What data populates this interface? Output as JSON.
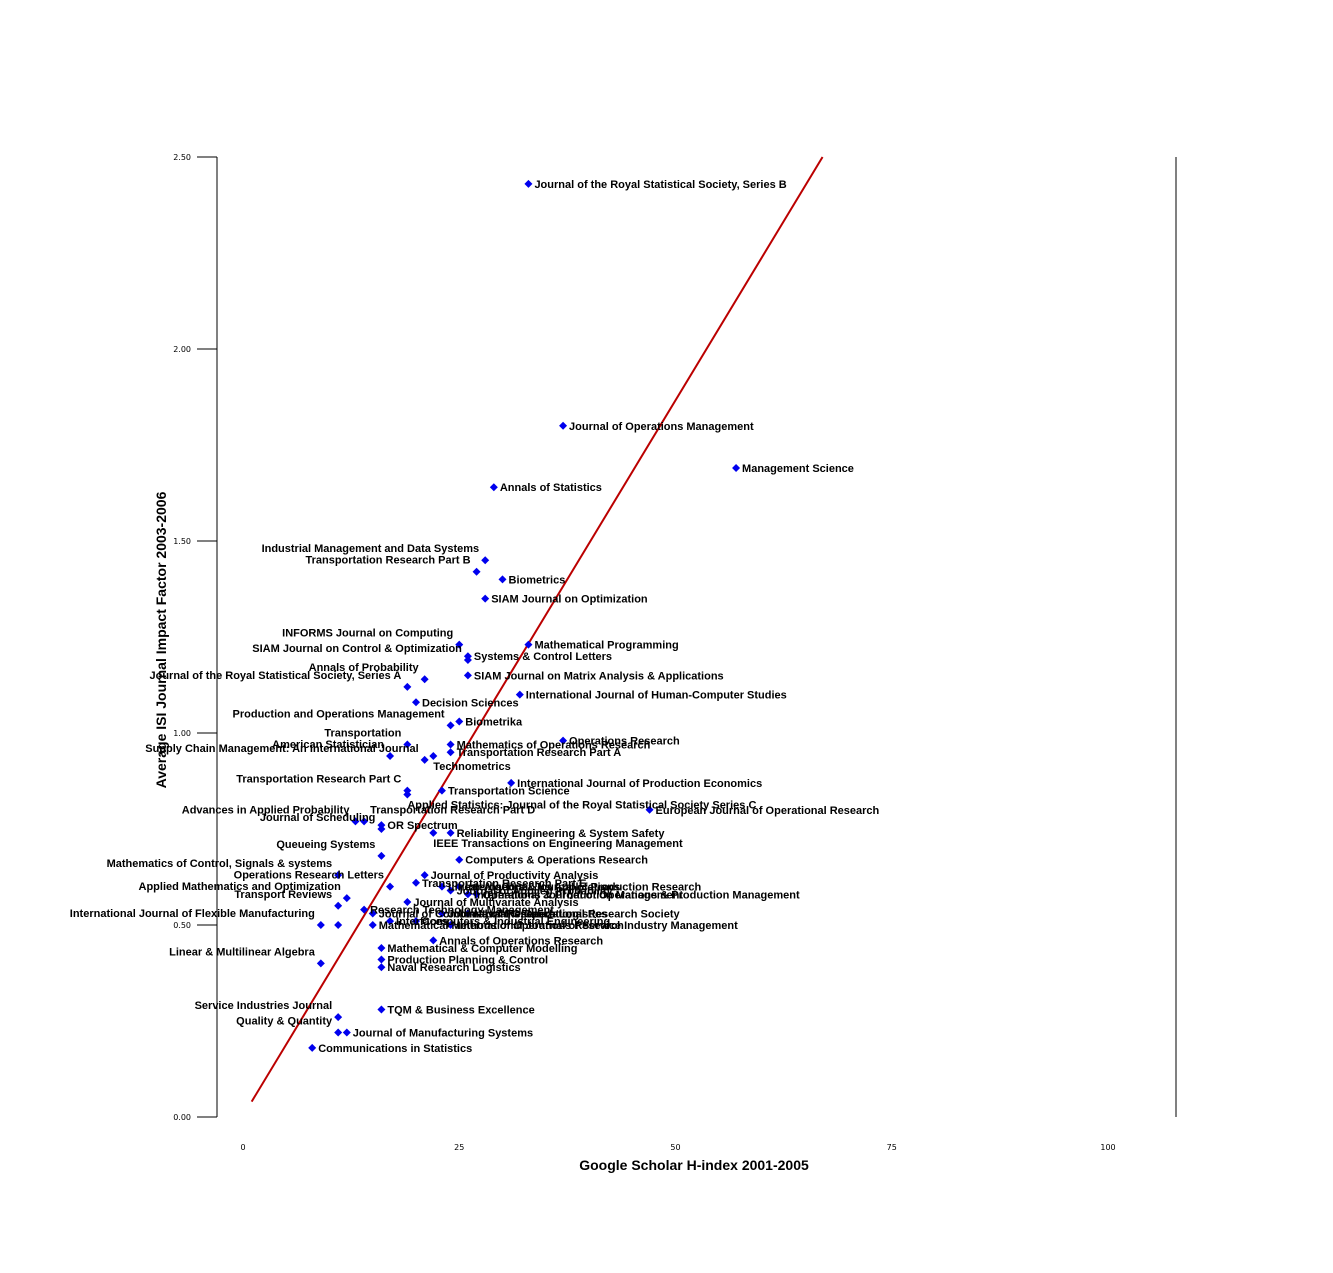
{
  "chart_data": {
    "type": "scatter",
    "title": "",
    "xlabel": "Google Scholar H-index 2001-2005",
    "ylabel": "Average ISI Journal Impact Factor 2003-2006",
    "xlim": [
      0,
      108
    ],
    "ylim": [
      0,
      2.5
    ],
    "x_ticks": [
      "0",
      "25",
      "50",
      "75",
      "100"
    ],
    "x_tick_values": [
      0,
      25,
      50,
      75,
      100
    ],
    "y_ticks": [
      "0.00",
      "0.50",
      "1.00",
      "1.50",
      "2.00",
      "2.50"
    ],
    "y_tick_values": [
      0,
      0.5,
      1.0,
      1.5,
      2.0,
      2.5
    ],
    "grid": false,
    "marker_color": "#0000ee",
    "trend_color": "#bb0000",
    "trend_line": {
      "x": [
        1,
        67
      ],
      "y": [
        0.04,
        2.5
      ]
    },
    "points": [
      {
        "label": "Journal of the Royal Statistical Society, Series B",
        "x": 33,
        "y": 2.43,
        "pos": "right"
      },
      {
        "label": "Journal of Operations Management",
        "x": 37,
        "y": 1.8,
        "pos": "right"
      },
      {
        "label": "Management Science",
        "x": 57,
        "y": 1.69,
        "pos": "right"
      },
      {
        "label": "Annals of Statistics",
        "x": 29,
        "y": 1.64,
        "pos": "right"
      },
      {
        "label": "Industrial Management and Data Systems",
        "x": 28,
        "y": 1.45,
        "pos": "left"
      },
      {
        "label": "Transportation Research Part B",
        "x": 27,
        "y": 1.42,
        "pos": "left"
      },
      {
        "label": "Biometrics",
        "x": 30,
        "y": 1.4,
        "pos": "right"
      },
      {
        "label": "SIAM Journal on Optimization",
        "x": 28,
        "y": 1.35,
        "pos": "right"
      },
      {
        "label": "INFORMS Journal on Computing",
        "x": 25,
        "y": 1.23,
        "pos": "left"
      },
      {
        "label": "Mathematical Programming",
        "x": 33,
        "y": 1.23,
        "pos": "right"
      },
      {
        "label": "SIAM Journal on Control & Optimization",
        "x": 26,
        "y": 1.19,
        "pos": "left"
      },
      {
        "label": "Systems & Control Letters",
        "x": 26,
        "y": 1.2,
        "pos": "right"
      },
      {
        "label": "Annals of Probability",
        "x": 21,
        "y": 1.14,
        "pos": "left"
      },
      {
        "label": "SIAM Journal on Matrix Analysis & Applications",
        "x": 26,
        "y": 1.15,
        "pos": "right"
      },
      {
        "label": "Journal of the Royal Statistical Society, Series A",
        "x": 19,
        "y": 1.12,
        "pos": "left"
      },
      {
        "label": "International Journal of Human-Computer Studies",
        "x": 32,
        "y": 1.1,
        "pos": "right"
      },
      {
        "label": "Decision Sciences",
        "x": 20,
        "y": 1.08,
        "pos": "right"
      },
      {
        "label": "Biometrika",
        "x": 25,
        "y": 1.03,
        "pos": "right"
      },
      {
        "label": "Production and Operations Management",
        "x": 24,
        "y": 1.02,
        "pos": "left"
      },
      {
        "label": "Operations Research",
        "x": 37,
        "y": 0.98,
        "pos": "right"
      },
      {
        "label": "Transportation",
        "x": 19,
        "y": 0.97,
        "pos": "left"
      },
      {
        "label": "Mathematics of Operations Research",
        "x": 24,
        "y": 0.97,
        "pos": "right"
      },
      {
        "label": "American Statistician",
        "x": 17,
        "y": 0.94,
        "pos": "left"
      },
      {
        "label": "Transportation Research Part A",
        "x": 24,
        "y": 0.95,
        "pos": "right"
      },
      {
        "label": "Supply Chain Management: An International Journal",
        "x": 21,
        "y": 0.93,
        "pos": "left"
      },
      {
        "label": "Technometrics",
        "x": 22,
        "y": 0.94,
        "pos": "below"
      },
      {
        "label": "International Journal of Production Economics",
        "x": 31,
        "y": 0.87,
        "pos": "right"
      },
      {
        "label": "Transportation Research Part C",
        "x": 19,
        "y": 0.85,
        "pos": "left"
      },
      {
        "label": "Transportation Science",
        "x": 23,
        "y": 0.85,
        "pos": "right"
      },
      {
        "label": "Applied Statistics: Journal of the Royal Statistical Society Series C",
        "x": 19,
        "y": 0.84,
        "pos": "below"
      },
      {
        "label": "European Journal of Operational Research",
        "x": 47,
        "y": 0.8,
        "pos": "right"
      },
      {
        "label": "Advances in Applied Probability",
        "x": 13,
        "y": 0.77,
        "pos": "left"
      },
      {
        "label": "Transportation Research Part D",
        "x": 14,
        "y": 0.77,
        "pos": "above"
      },
      {
        "label": "OR Spectrum",
        "x": 16,
        "y": 0.76,
        "pos": "right"
      },
      {
        "label": "Journal of Scheduling",
        "x": 16,
        "y": 0.75,
        "pos": "left"
      },
      {
        "label": "Reliability Engineering & System Safety",
        "x": 24,
        "y": 0.74,
        "pos": "right"
      },
      {
        "label": "IEEE Transactions on Engineering Management",
        "x": 22,
        "y": 0.74,
        "pos": "below"
      },
      {
        "label": "Queueing Systems",
        "x": 16,
        "y": 0.68,
        "pos": "left"
      },
      {
        "label": "Computers & Operations Research",
        "x": 25,
        "y": 0.67,
        "pos": "right"
      },
      {
        "label": "Mathematics of Control, Signals & systems",
        "x": 11,
        "y": 0.63,
        "pos": "left"
      },
      {
        "label": "Journal of Productivity Analysis",
        "x": 21,
        "y": 0.63,
        "pos": "right"
      },
      {
        "label": "Transportation Research Part E",
        "x": 20,
        "y": 0.61,
        "pos": "right"
      },
      {
        "label": "Operations Research Letters",
        "x": 17,
        "y": 0.6,
        "pos": "left"
      },
      {
        "label": "Journal of Applied Probability",
        "x": 24,
        "y": 0.59,
        "pos": "right"
      },
      {
        "label": "International Journal of Production Research",
        "x": 25,
        "y": 0.6,
        "pos": "right"
      },
      {
        "label": "Linear Algebra & Its Applications",
        "x": 23,
        "y": 0.6,
        "pos": "right"
      },
      {
        "label": "Operations & Production Management",
        "x": 27,
        "y": 0.58,
        "pos": "right"
      },
      {
        "label": "International Journal of Operations & Production Management",
        "x": 26,
        "y": 0.58,
        "pos": "right"
      },
      {
        "label": "Applied Mathematics and Optimization",
        "x": 12,
        "y": 0.57,
        "pos": "left"
      },
      {
        "label": "Journal of Multivariate Analysis",
        "x": 19,
        "y": 0.56,
        "pos": "right"
      },
      {
        "label": "Transport Reviews",
        "x": 11,
        "y": 0.55,
        "pos": "left"
      },
      {
        "label": "Research Technology Management",
        "x": 14,
        "y": 0.54,
        "pos": "right"
      },
      {
        "label": "Journal of Combinatorial Optimization",
        "x": 15,
        "y": 0.53,
        "pos": "right"
      },
      {
        "label": "Journal of the Operational Research Society",
        "x": 23,
        "y": 0.53,
        "pos": "right"
      },
      {
        "label": "Naval Research Logistics",
        "x": 26,
        "y": 0.53,
        "pos": "right"
      },
      {
        "label": "Interfaces",
        "x": 17,
        "y": 0.51,
        "pos": "right"
      },
      {
        "label": "Computers & Industrial Engineering",
        "x": 20,
        "y": 0.51,
        "pos": "right"
      },
      {
        "label": "International Journal of Flexible Manufacturing",
        "x": 9,
        "y": 0.5,
        "pos": "left"
      },
      {
        "label": "International Journal of Flexible Manufacturing",
        "x": 11,
        "y": 0.5,
        "pos": "none"
      },
      {
        "label": "Mathematical Methods of Operations Research",
        "x": 15,
        "y": 0.5,
        "pos": "right"
      },
      {
        "label": "International Journal of Service Industry Management",
        "x": 24,
        "y": 0.5,
        "pos": "right"
      },
      {
        "label": "Annals of Operations Research",
        "x": 22,
        "y": 0.46,
        "pos": "right"
      },
      {
        "label": "Mathematical & Computer Modelling",
        "x": 16,
        "y": 0.44,
        "pos": "right"
      },
      {
        "label": "Linear & Multilinear Algebra",
        "x": 9,
        "y": 0.4,
        "pos": "left"
      },
      {
        "label": "Production Planning & Control",
        "x": 16,
        "y": 0.41,
        "pos": "right"
      },
      {
        "label": "Naval Research Logistics",
        "x": 16,
        "y": 0.39,
        "pos": "right"
      },
      {
        "label": "TQM & Business Excellence",
        "x": 16,
        "y": 0.28,
        "pos": "right"
      },
      {
        "label": "Service Industries Journal",
        "x": 11,
        "y": 0.26,
        "pos": "left"
      },
      {
        "label": "Quality & Quantity",
        "x": 11,
        "y": 0.22,
        "pos": "left"
      },
      {
        "label": "Journal of Manufacturing Systems",
        "x": 12,
        "y": 0.22,
        "pos": "right"
      },
      {
        "label": "Communications in Statistics",
        "x": 8,
        "y": 0.18,
        "pos": "right"
      }
    ]
  }
}
